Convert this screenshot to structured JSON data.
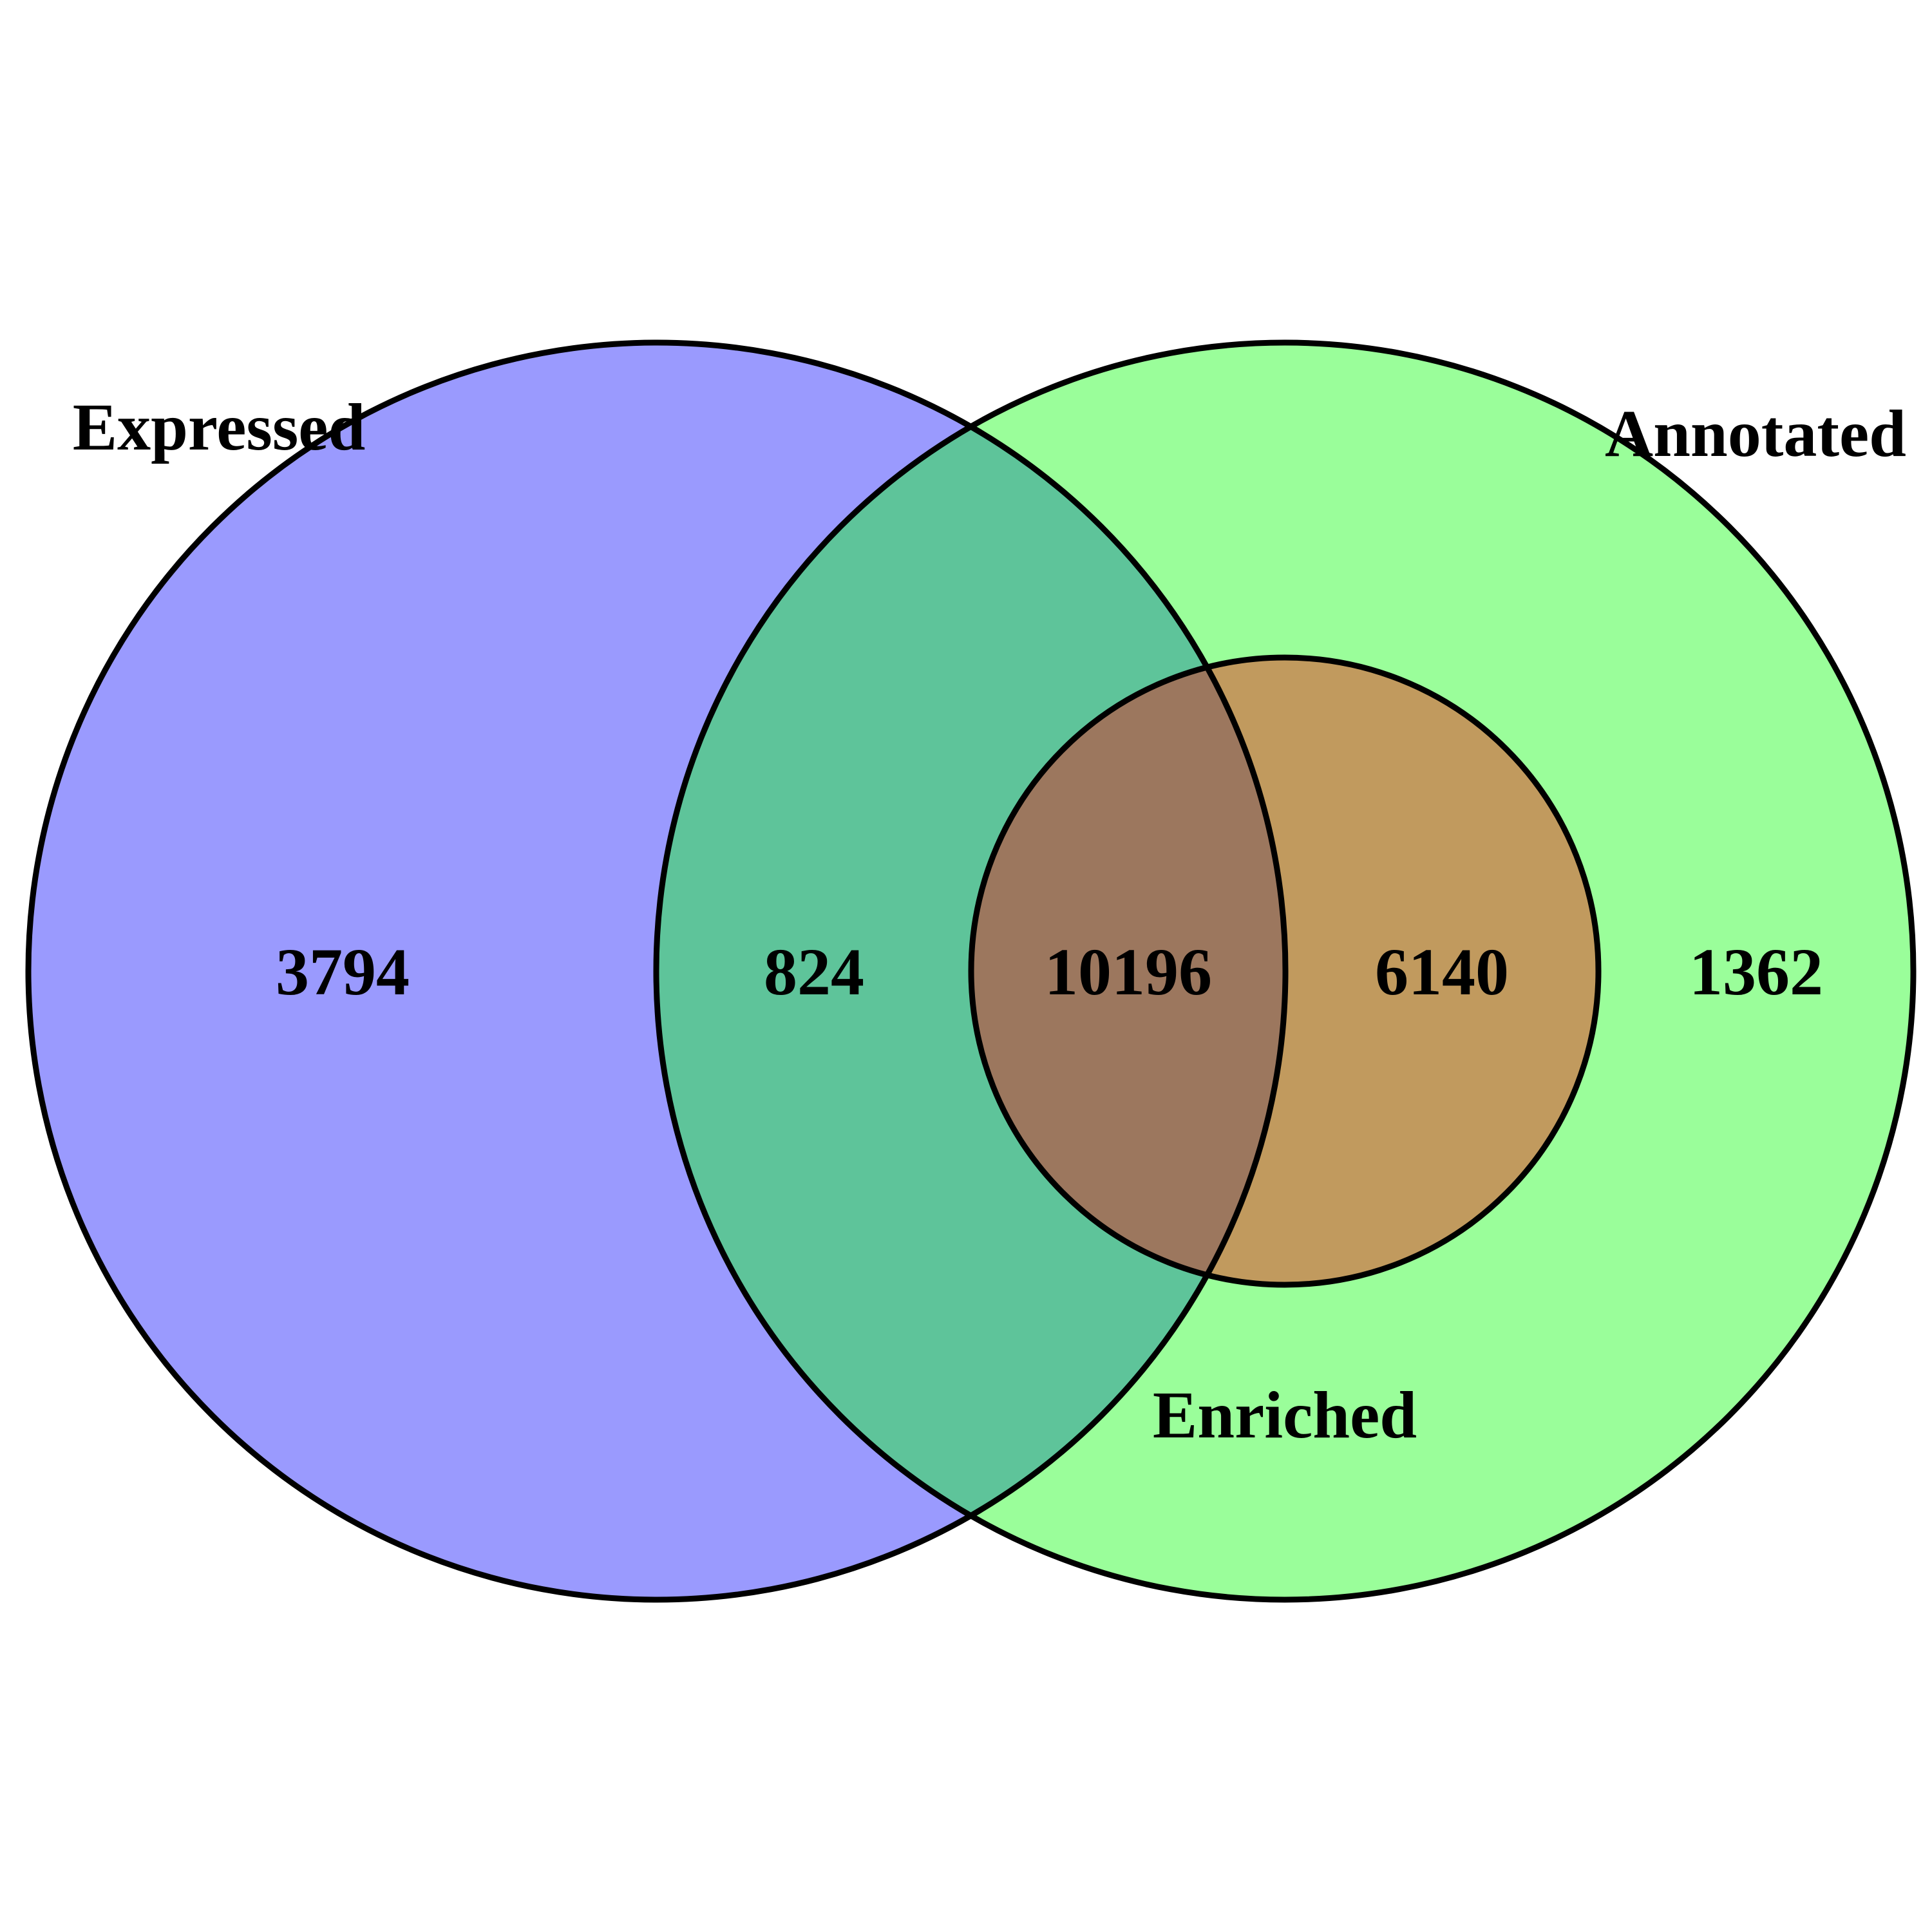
{
  "sets": [
    {
      "id": "expressed",
      "name": "Expressed",
      "color": "#9a9afe"
    },
    {
      "id": "annotated",
      "name": "Annotated",
      "color": "#9afe9a"
    },
    {
      "id": "enriched",
      "name": "Enriched",
      "color": "#c19a5e"
    }
  ],
  "regions": [
    {
      "id": "expressed_only",
      "sets": [
        "expressed"
      ],
      "count": "3794"
    },
    {
      "id": "expressed_annotated",
      "sets": [
        "expressed",
        "annotated"
      ],
      "count": "824",
      "color": "#5ec49a"
    },
    {
      "id": "all_three",
      "sets": [
        "expressed",
        "annotated",
        "enriched"
      ],
      "count": "10196",
      "color": "#9c775e"
    },
    {
      "id": "annotated_enriched",
      "sets": [
        "annotated",
        "enriched"
      ],
      "count": "6140",
      "color": "#c19a5e"
    },
    {
      "id": "annotated_only",
      "sets": [
        "annotated"
      ],
      "count": "1362"
    }
  ]
}
